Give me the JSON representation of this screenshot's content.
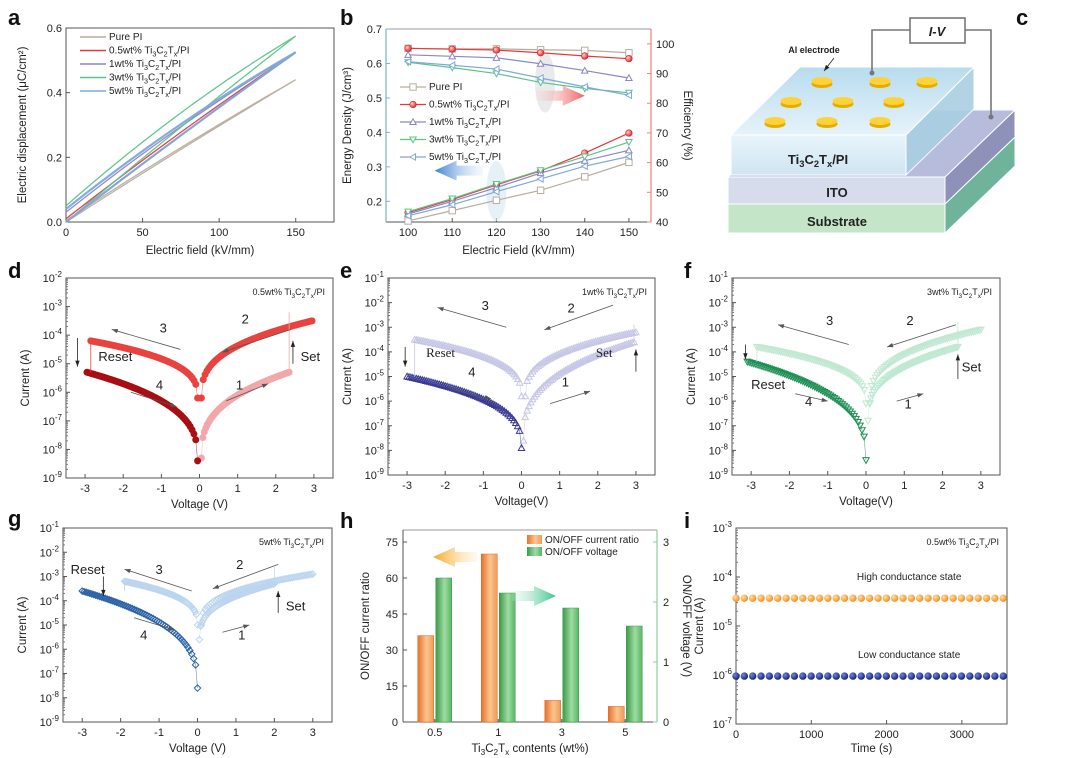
{
  "colors": {
    "pure_pi": "#b8ad9e",
    "wt05": "#e8393a",
    "wt1": "#8a86c8",
    "wt3": "#5cc48a",
    "wt5": "#7fa8dc",
    "d_dark": "#a80f12",
    "d_mid": "#e9433f",
    "d_light": "#f3a7a8",
    "e_dark": "#3a3a95",
    "e_light": "#c6c6e6",
    "f_dark": "#1f8f55",
    "f_light": "#bfe8d2",
    "g_dark": "#2a63a8",
    "g_light": "#bcd5ef",
    "orange": "#f0934a",
    "green": "#4caa5c",
    "hcs": "#f5921e",
    "lcs": "#1a2c8f"
  },
  "chart_data": [
    {
      "id": "a",
      "panel_label": "a",
      "type": "line",
      "title": "",
      "xlabel": "Electric field (kV/mm)",
      "ylabel": "Electric displacement (μC/cm²)",
      "xlim": [
        0,
        175
      ],
      "ylim": [
        0,
        0.6
      ],
      "xticks": [
        0,
        50,
        100,
        150
      ],
      "yticks": [
        0.0,
        0.2,
        0.4,
        0.6
      ],
      "ytick_labels": [
        "0.0",
        "0.2",
        "0.4",
        "0.6"
      ],
      "legend_position": "top-left",
      "series": [
        {
          "name": "Pure PI",
          "color_key": "pure_pi",
          "loop": {
            "e_max": 150,
            "d_max": 0.44,
            "d_remnant": 0.005,
            "d_upper_offset": 0.015
          }
        },
        {
          "name": "0.5wt% Ti3C2Tx/PI",
          "color_key": "wt05",
          "loop": {
            "e_max": 150,
            "d_max": 0.525,
            "d_remnant": 0.01,
            "d_upper_offset": 0.02
          }
        },
        {
          "name": "1wt% Ti3C2Tx/PI",
          "color_key": "wt1",
          "loop": {
            "e_max": 150,
            "d_max": 0.525,
            "d_remnant": 0.03,
            "d_upper_offset": 0.035
          }
        },
        {
          "name": "3wt% Ti3C2Tx/PI",
          "color_key": "wt3",
          "loop": {
            "e_max": 150,
            "d_max": 0.575,
            "d_remnant": 0.05,
            "d_upper_offset": 0.05
          }
        },
        {
          "name": "5wt% Ti3C2Tx/PI",
          "color_key": "wt5",
          "loop": {
            "e_max": 150,
            "d_max": 0.525,
            "d_remnant": 0.04,
            "d_upper_offset": 0.04
          }
        }
      ],
      "legend_labels": [
        {
          "pre": "Pure PI",
          "sub": ""
        },
        {
          "pre": "0.5wt% Ti",
          "sub": "3",
          "mid": "C",
          "sub2": "2",
          "mid2": "T",
          "sub3": "x",
          "post": "/PI"
        },
        {
          "pre": "1wt% Ti",
          "sub": "3",
          "mid": "C",
          "sub2": "2",
          "mid2": "T",
          "sub3": "x",
          "post": "/PI"
        },
        {
          "pre": "3wt% Ti",
          "sub": "3",
          "mid": "C",
          "sub2": "2",
          "mid2": "T",
          "sub3": "x",
          "post": "/PI"
        },
        {
          "pre": "5wt% Ti",
          "sub": "3",
          "mid": "C",
          "sub2": "2",
          "mid2": "T",
          "sub3": "x",
          "post": "/PI"
        }
      ]
    },
    {
      "id": "b",
      "panel_label": "b",
      "type": "line",
      "xlabel": "Electric Field (kV/mm)",
      "ylabel": "Energy Density (J/cm³)",
      "ylabel_right": "Efficiency (%)",
      "x": [
        100,
        110,
        120,
        130,
        140,
        150
      ],
      "xlim": [
        95,
        155
      ],
      "ylim": [
        0.14,
        0.7
      ],
      "ylim_right": [
        40,
        105
      ],
      "xticks": [
        100,
        110,
        120,
        130,
        140,
        150
      ],
      "yticks": [
        0.2,
        0.3,
        0.4,
        0.5,
        0.6,
        0.7
      ],
      "yticks_right": [
        40,
        50,
        60,
        70,
        80,
        90,
        100
      ],
      "legend_position": "center-left",
      "energy_density": [
        {
          "name": "Pure PI",
          "color_key": "pure_pi",
          "marker": "square",
          "values": [
            0.143,
            0.173,
            0.203,
            0.232,
            0.271,
            0.313
          ]
        },
        {
          "name": "0.5wt% Ti3C2Tx/PI",
          "color_key": "wt05",
          "marker": "circle",
          "values": [
            0.167,
            0.205,
            0.248,
            0.288,
            0.34,
            0.398
          ]
        },
        {
          "name": "1wt% Ti3C2Tx/PI",
          "color_key": "wt1",
          "marker": "triangle-up",
          "values": [
            0.163,
            0.2,
            0.24,
            0.282,
            0.318,
            0.348
          ]
        },
        {
          "name": "3wt% Ti3C2Tx/PI",
          "color_key": "wt3",
          "marker": "triangle-down",
          "values": [
            0.17,
            0.208,
            0.25,
            0.29,
            0.33,
            0.372
          ]
        },
        {
          "name": "5wt% Ti3C2Tx/PI",
          "color_key": "wt5",
          "marker": "triangle-left",
          "values": [
            0.158,
            0.19,
            0.228,
            0.265,
            0.302,
            0.33
          ]
        }
      ],
      "efficiency": [
        {
          "name": "Pure PI",
          "color_key": "pure_pi",
          "marker": "square",
          "values": [
            98.5,
            98.3,
            98.3,
            98.0,
            97.8,
            97.0
          ]
        },
        {
          "name": "0.5wt% Ti3C2Tx/PI",
          "color_key": "wt05",
          "marker": "circle",
          "values": [
            98.5,
            98.2,
            97.9,
            97.0,
            95.9,
            95.0
          ]
        },
        {
          "name": "1wt% Ti3C2Tx/PI",
          "color_key": "wt1",
          "marker": "triangle-up",
          "values": [
            96.3,
            95.8,
            95.3,
            93.3,
            91.0,
            88.5
          ]
        },
        {
          "name": "3wt% Ti3C2Tx/PI",
          "color_key": "wt3",
          "marker": "triangle-down",
          "values": [
            93.8,
            92.0,
            90.0,
            87.0,
            85.0,
            83.5
          ]
        },
        {
          "name": "5wt% Ti3C2Tx/PI",
          "color_key": "wt5",
          "marker": "triangle-left",
          "values": [
            94.0,
            92.8,
            91.5,
            88.5,
            85.5,
            82.7
          ]
        }
      ],
      "legend_labels": [
        {
          "pre": "Pure PI"
        },
        {
          "pre": "0.5wt% Ti"
        },
        {
          "pre": "1wt% Ti"
        },
        {
          "pre": "3wt% Ti"
        },
        {
          "pre": "5wt% Ti"
        }
      ]
    },
    {
      "id": "d",
      "panel_label": "d",
      "type": "scatter",
      "xlabel": "Voltage (V)",
      "ylabel": "Current (A)",
      "xlim": [
        -3.5,
        3.5
      ],
      "ylim_log10": [
        -9,
        -2
      ],
      "xticks": [
        -3,
        -2,
        -1,
        0,
        1,
        2,
        3
      ],
      "annotation": "0.5wt% Ti3C2Tx/PI",
      "labels": {
        "set": "Set",
        "reset": "Reset",
        "s1": "1",
        "s2": "2",
        "s3": "3",
        "s4": "4"
      },
      "marker": "circle",
      "sweeps": [
        {
          "n": 1,
          "color_key": "d_light",
          "from": [
            0.05,
            -8.3
          ],
          "to": [
            2.35,
            -5.3
          ]
        },
        {
          "n": 2,
          "color_key": "d_mid",
          "from": [
            2.95,
            -3.5
          ],
          "to": [
            0.05,
            -6.2
          ]
        },
        {
          "n": 3,
          "color_key": "d_mid",
          "from": [
            -0.05,
            -6.2
          ],
          "to": [
            -2.85,
            -4.2
          ]
        },
        {
          "n": 4,
          "color_key": "d_dark",
          "from": [
            -2.95,
            -5.3
          ],
          "to": [
            -0.05,
            -8.4
          ]
        }
      ]
    },
    {
      "id": "e",
      "panel_label": "e",
      "type": "scatter",
      "xlabel": "Voltage(V)",
      "ylabel": "Current (A)",
      "xlim": [
        -3.5,
        3.5
      ],
      "ylim_log10": [
        -9,
        -1
      ],
      "xticks": [
        -3,
        -2,
        -1,
        0,
        1,
        2,
        3
      ],
      "annotation": "1wt% Ti3C2Tx/PI",
      "labels": {
        "set": "Set",
        "reset": "Reset",
        "s1": "1",
        "s2": "2",
        "s3": "3",
        "s4": "4"
      },
      "marker": "triangle-up",
      "sweeps": [
        {
          "n": 1,
          "color_key": "e_light",
          "from": [
            0.05,
            -7.6
          ],
          "to": [
            2.95,
            -3.6
          ]
        },
        {
          "n": 2,
          "color_key": "e_light",
          "from": [
            3.0,
            -3.2
          ],
          "to": [
            0.1,
            -5.8
          ]
        },
        {
          "n": 3,
          "color_key": "e_light",
          "from": [
            0.0,
            -5.8
          ],
          "to": [
            -2.8,
            -3.5
          ]
        },
        {
          "n": 4,
          "color_key": "e_dark",
          "from": [
            -3.0,
            -5.0
          ],
          "to": [
            0.0,
            -7.9
          ]
        }
      ]
    },
    {
      "id": "f",
      "panel_label": "f",
      "type": "scatter",
      "xlabel": "Voltage(V)",
      "ylabel": "Current (A)",
      "xlim": [
        -3.5,
        3.5
      ],
      "ylim_log10": [
        -9,
        -1
      ],
      "xticks": [
        -3,
        -2,
        -1,
        0,
        1,
        2,
        3
      ],
      "annotation": "3wt% Ti3C2Tx/PI",
      "labels": {
        "set": "Set",
        "reset": "Reset",
        "s1": "1",
        "s2": "2",
        "s3": "3",
        "s4": "4"
      },
      "marker": "triangle-down",
      "sweeps": [
        {
          "n": 1,
          "color_key": "f_light",
          "from": [
            0.05,
            -6.8
          ],
          "to": [
            2.4,
            -3.8
          ]
        },
        {
          "n": 2,
          "color_key": "f_light",
          "from": [
            3.0,
            -3.1
          ],
          "to": [
            0.1,
            -6.1
          ]
        },
        {
          "n": 3,
          "color_key": "f_light",
          "from": [
            0.0,
            -6.1
          ],
          "to": [
            -2.85,
            -3.8
          ]
        },
        {
          "n": 4,
          "color_key": "f_dark",
          "from": [
            -3.1,
            -4.4
          ],
          "to": [
            0.0,
            -8.4
          ]
        }
      ]
    },
    {
      "id": "g",
      "panel_label": "g",
      "type": "scatter",
      "xlabel": "Voltage (V)",
      "ylabel": "Current (A)",
      "xlim": [
        -3.5,
        3.5
      ],
      "ylim_log10": [
        -9,
        -1
      ],
      "xticks": [
        -3,
        -2,
        -1,
        0,
        1,
        2,
        3
      ],
      "annotation": "5wt% Ti3C2Tx/PI",
      "labels": {
        "set": "Set",
        "reset": "Reset",
        "s1": "1",
        "s2": "2",
        "s3": "3",
        "s4": "4"
      },
      "marker": "diamond",
      "sweeps": [
        {
          "n": 1,
          "color_key": "g_light",
          "from": [
            0.05,
            -5.6
          ],
          "to": [
            2.0,
            -3.3
          ]
        },
        {
          "n": 2,
          "color_key": "g_light",
          "from": [
            3.0,
            -2.9
          ],
          "to": [
            0.1,
            -5.0
          ]
        },
        {
          "n": 3,
          "color_key": "g_light",
          "from": [
            0.0,
            -5.0
          ],
          "to": [
            -1.9,
            -3.2
          ]
        },
        {
          "n": 4,
          "color_key": "g_dark",
          "from": [
            -3.0,
            -3.6
          ],
          "to": [
            0.0,
            -7.6
          ]
        }
      ]
    },
    {
      "id": "h",
      "panel_label": "h",
      "type": "bar",
      "categories": [
        "0.5",
        "1",
        "3",
        "5"
      ],
      "xlabel": "Ti3C2Tx contents (wt%)",
      "ylabel": "ON/OFF current ratio",
      "ylabel_right": "ON/OFF voltage (V)",
      "ylim": [
        0,
        80
      ],
      "ylim_right": [
        0,
        3.2
      ],
      "yticks": [
        0,
        15,
        30,
        45,
        60,
        75
      ],
      "yticks_right": [
        0,
        1,
        2,
        3
      ],
      "legend_position": "top-right",
      "series": [
        {
          "name": "ON/OFF current ratio",
          "color_key": "orange",
          "axis": "left",
          "values": [
            36,
            70,
            9,
            6.5
          ]
        },
        {
          "name": "ON/OFF voltage",
          "color_key": "green",
          "axis": "right",
          "values": [
            2.4,
            2.15,
            1.9,
            1.6
          ]
        }
      ]
    },
    {
      "id": "i",
      "panel_label": "i",
      "type": "scatter",
      "xlabel": "Time (s)",
      "ylabel": "Current (A)",
      "xlim": [
        0,
        3600
      ],
      "ylim_log10": [
        -7,
        -3
      ],
      "xticks": [
        0,
        1000,
        2000,
        3000
      ],
      "annotation": "0.5wt% Ti3C2Tx/PI",
      "series": [
        {
          "name": "High conductance state",
          "color_key": "hcs",
          "value": 3.7e-05,
          "t_start": 0,
          "t_end": 3550,
          "count": 33
        },
        {
          "name": "Low conductance state",
          "color_key": "lcs",
          "value": 9.5e-07,
          "t_start": 0,
          "t_end": 3550,
          "count": 33
        }
      ]
    }
  ],
  "diagram_c": {
    "panel_label": "c",
    "iv_label": "I-V",
    "electrode_label": "Al electrode",
    "layer_top": "Ti3C2Tx/PI",
    "layer_mid": "ITO",
    "layer_bottom": "Substrate"
  }
}
